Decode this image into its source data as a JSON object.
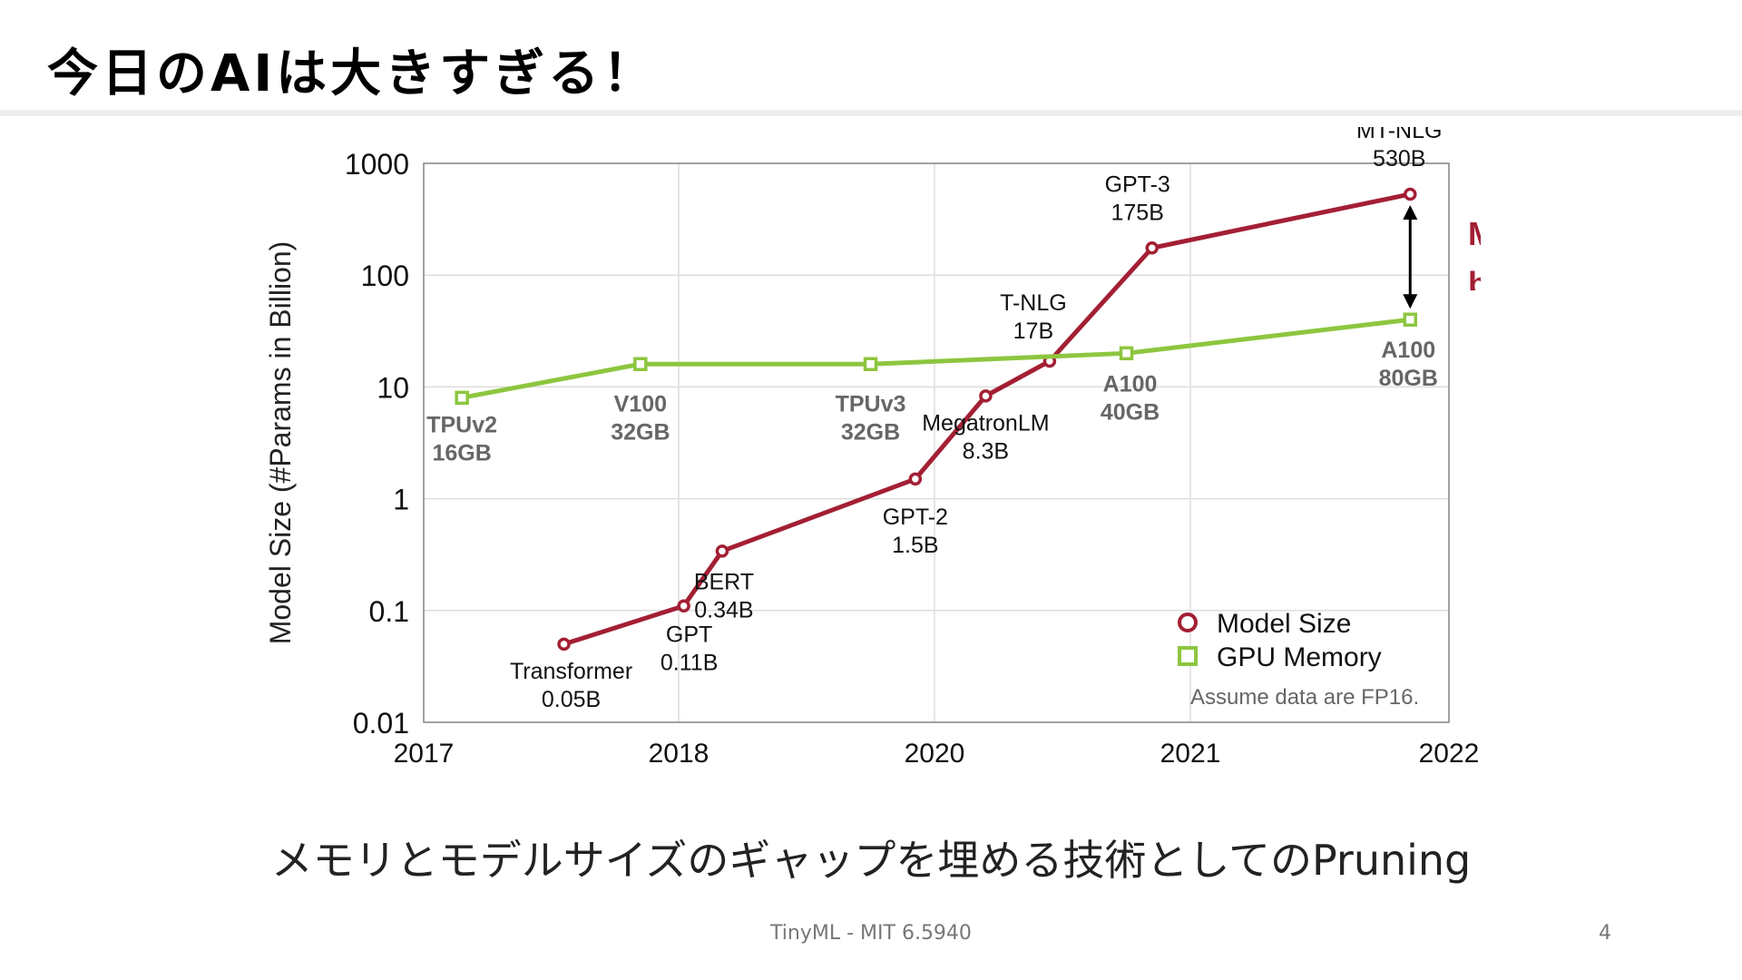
{
  "slide": {
    "title": "今日のAIは大きすぎる！",
    "caption": "メモリとモデルサイズのギャップを埋める技術としてのPruning",
    "footer": "TinyML - MIT 6.5940",
    "page_number": "4",
    "clipped_callout_lines": [
      "M",
      "b"
    ]
  },
  "chart_data": {
    "type": "line",
    "title": "",
    "xlabel": "",
    "ylabel": "Model Size (#Params in Billion)",
    "y_scale": "log",
    "ylim": [
      0.01,
      1000
    ],
    "xlim": [
      "2017",
      "2022"
    ],
    "x_ticks": [
      "2017",
      "2018",
      "2020",
      "2021",
      "2022"
    ],
    "y_ticks": [
      "0.01",
      "0.1",
      "1",
      "10",
      "100",
      "1000"
    ],
    "grid": true,
    "legend_position": "bottom-right",
    "footnote": "Assume data are FP16.",
    "colors": {
      "model_size": "#a31f34",
      "gpu_memory": "#8dc63f",
      "arrow": "#000000"
    },
    "series": [
      {
        "name": "Model Size",
        "marker": "circle",
        "points": [
          {
            "x": "2017.55",
            "y": 0.05,
            "label": [
              "Transformer",
              "0.05B"
            ]
          },
          {
            "x": "2018.04",
            "y": 0.11,
            "label": [
              "GPT",
              "0.11B"
            ]
          },
          {
            "x": "2018.34",
            "y": 0.34,
            "label": [
              "BERT",
              "0.34B"
            ]
          },
          {
            "x": "2019.85",
            "y": 1.5,
            "label": [
              "GPT-2",
              "1.5B"
            ]
          },
          {
            "x": "2020.2",
            "y": 8.3,
            "label": [
              "MegatronLM",
              "8.3B"
            ]
          },
          {
            "x": "2020.45",
            "y": 17,
            "label": [
              "T-NLG",
              "17B"
            ]
          },
          {
            "x": "2020.85",
            "y": 175,
            "label": [
              "GPT-3",
              "175B"
            ]
          },
          {
            "x": "2021.85",
            "y": 530,
            "label": [
              "MT-NLG",
              "530B"
            ]
          }
        ]
      },
      {
        "name": "GPU Memory",
        "marker": "square",
        "points": [
          {
            "x": "2017.15",
            "y": 8,
            "label": [
              "TPUv2",
              "16GB"
            ]
          },
          {
            "x": "2017.85",
            "y": 16,
            "label": [
              "V100",
              "32GB"
            ]
          },
          {
            "x": "2019.5",
            "y": 16,
            "label": [
              "TPUv3",
              "32GB"
            ]
          },
          {
            "x": "2020.75",
            "y": 20,
            "label": [
              "A100",
              "40GB"
            ]
          },
          {
            "x": "2021.85",
            "y": 40,
            "label": [
              "A100",
              "80GB"
            ]
          }
        ]
      }
    ]
  }
}
